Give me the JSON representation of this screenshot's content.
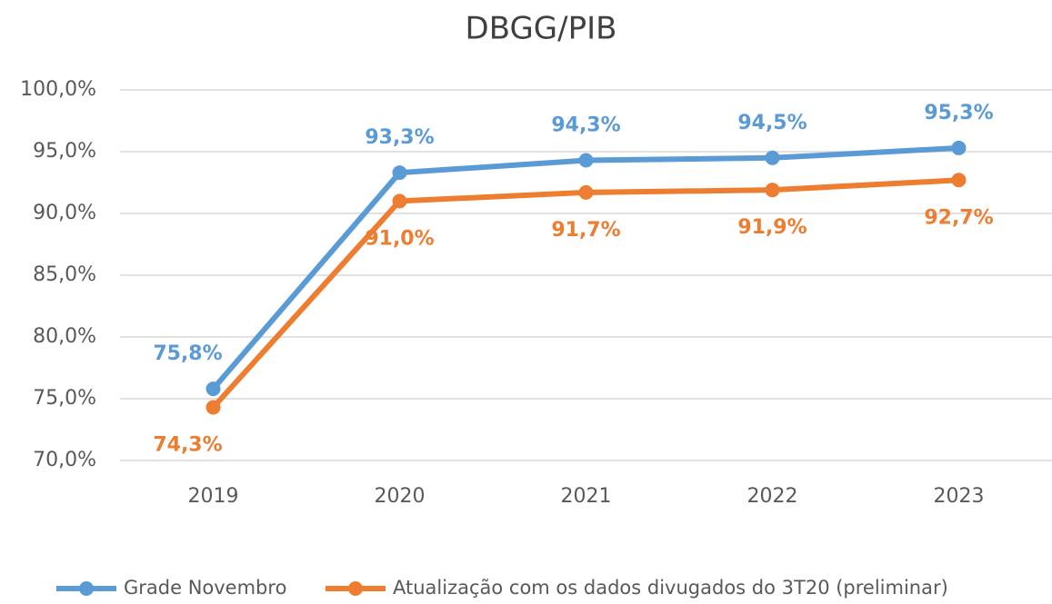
{
  "chart_data": {
    "type": "line",
    "title": "DBGG/PIB",
    "categories": [
      "2019",
      "2020",
      "2021",
      "2022",
      "2023"
    ],
    "series": [
      {
        "name": "Grade Novembro",
        "color": "#5b9bd5",
        "values": [
          75.8,
          93.3,
          94.3,
          94.5,
          95.3
        ],
        "value_labels": [
          "75,8%",
          "93,3%",
          "94,3%",
          "94,5%",
          "95,3%"
        ]
      },
      {
        "name": "Atualização com os dados divugados do 3T20  (preliminar)",
        "color": "#ed7d31",
        "values": [
          74.3,
          91.0,
          91.7,
          91.9,
          92.7
        ],
        "value_labels": [
          "74,3%",
          "91,0%",
          "91,7%",
          "91,9%",
          "92,7%"
        ]
      }
    ],
    "ylim": [
      70,
      100
    ],
    "yticks": [
      {
        "value": 70,
        "label": "70,0%"
      },
      {
        "value": 75,
        "label": "75,0%"
      },
      {
        "value": 80,
        "label": "80,0%"
      },
      {
        "value": 85,
        "label": "85,0%"
      },
      {
        "value": 90,
        "label": "90,0%"
      },
      {
        "value": 95,
        "label": "95,0%"
      },
      {
        "value": 100,
        "label": "100,0%"
      }
    ],
    "grid": true,
    "legend": "bottom"
  }
}
